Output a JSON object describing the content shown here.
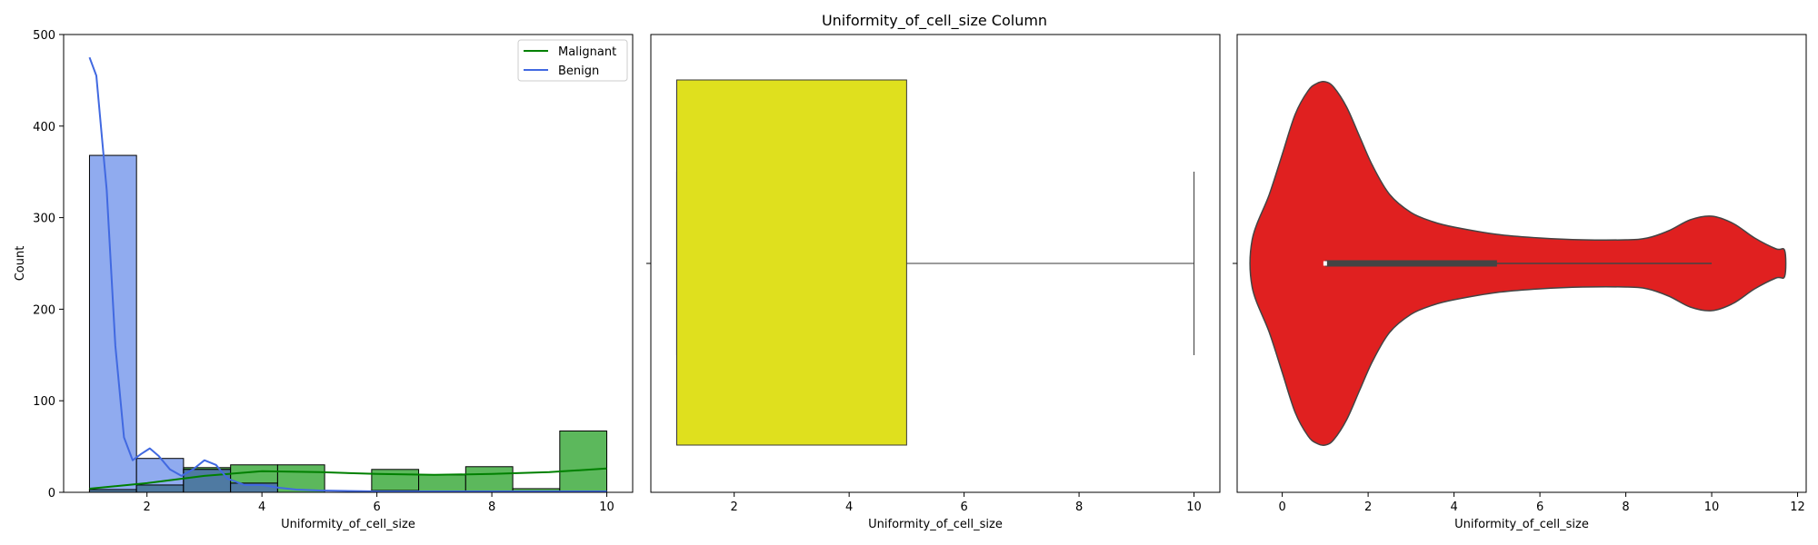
{
  "figure": {
    "title": "Uniformity_of_cell_size Column"
  },
  "colors": {
    "malignant_line": "#008000",
    "malignant_fill": "#5cb85c",
    "benign_line": "#4169e1",
    "benign_fill": "#8aa6ee",
    "overlap_fill": "#4f7aa2",
    "box_fill": "#dfe01e",
    "violin_fill": "#e02020",
    "violin_edge": "#444444"
  },
  "chart_data": [
    {
      "type": "histogram",
      "title": "",
      "xlabel": "Uniformity_of_cell_size",
      "ylabel": "Count",
      "xlim": [
        0.55,
        10.45
      ],
      "ylim": [
        0,
        500
      ],
      "xticks": [
        2,
        4,
        6,
        8,
        10
      ],
      "yticks": [
        0,
        100,
        200,
        300,
        400,
        500
      ],
      "legend": {
        "position": "top-right",
        "entries": [
          "Malignant",
          "Benign"
        ]
      },
      "bin_edges": [
        1,
        1.818,
        2.636,
        3.455,
        4.273,
        5.091,
        5.909,
        6.727,
        7.545,
        8.364,
        9.182,
        10
      ],
      "series": [
        {
          "name": "Malignant",
          "counts": [
            3,
            8,
            27,
            30,
            30,
            0,
            25,
            19,
            28,
            4,
            67
          ]
        },
        {
          "name": "Benign",
          "counts": [
            368,
            37,
            25,
            10,
            0,
            0,
            2,
            1,
            1,
            1,
            0
          ]
        }
      ],
      "kde": [
        {
          "name": "Malignant",
          "x": [
            1,
            2,
            3,
            4,
            5,
            6,
            7,
            8,
            9,
            10
          ],
          "y": [
            4,
            10,
            18,
            23,
            22,
            20,
            19,
            20,
            22,
            26
          ]
        },
        {
          "name": "Benign",
          "x": [
            1,
            1.12,
            1.3,
            1.45,
            1.6,
            1.75,
            1.9,
            2.05,
            2.2,
            2.4,
            2.6,
            2.8,
            3.0,
            3.2,
            3.4,
            3.7,
            4.0,
            4.3,
            4.6,
            5.0,
            6.0,
            7.0,
            8.0,
            9.0,
            10.0
          ],
          "y": [
            475,
            455,
            330,
            160,
            60,
            35,
            42,
            48,
            40,
            25,
            18,
            25,
            35,
            30,
            15,
            8,
            8,
            5,
            3,
            2,
            1,
            1,
            1,
            1,
            1
          ]
        }
      ]
    },
    {
      "type": "box",
      "xlabel": "Uniformity_of_cell_size",
      "xlim": [
        0.55,
        10.45
      ],
      "xticks": [
        2,
        4,
        6,
        8,
        10
      ],
      "q1": 1,
      "median": 1,
      "q3": 5,
      "whisker_low": 1,
      "whisker_high": 10
    },
    {
      "type": "violin",
      "xlabel": "Uniformity_of_cell_size",
      "xlim": [
        -1.05,
        12.2
      ],
      "xticks": [
        0,
        2,
        4,
        6,
        8,
        10,
        12
      ],
      "q1": 1,
      "median": 1,
      "q3": 5,
      "whisker_low": 1,
      "whisker_high": 10,
      "density_x": [
        -0.7,
        -0.3,
        0,
        0.3,
        0.6,
        0.8,
        1.0,
        1.2,
        1.5,
        1.8,
        2.1,
        2.5,
        3.0,
        3.5,
        4.0,
        5.0,
        6.0,
        7.0,
        8.0,
        8.5,
        9.0,
        9.5,
        10.0,
        10.5,
        11.0,
        11.5,
        11.7
      ],
      "density_w": [
        0.13,
        0.38,
        0.6,
        0.82,
        0.95,
        0.99,
        1.0,
        0.97,
        0.86,
        0.7,
        0.54,
        0.38,
        0.28,
        0.23,
        0.2,
        0.16,
        0.14,
        0.13,
        0.13,
        0.14,
        0.18,
        0.24,
        0.26,
        0.22,
        0.14,
        0.08,
        0.07
      ]
    }
  ]
}
